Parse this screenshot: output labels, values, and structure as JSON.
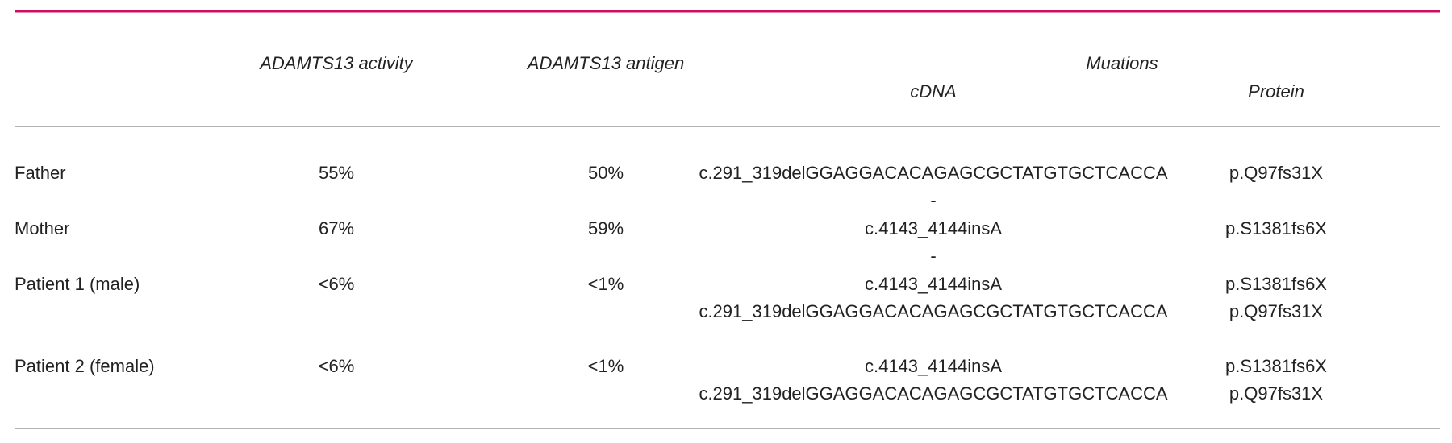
{
  "header": {
    "activity": "ADAMTS13 activity",
    "antigen": "ADAMTS13 antigen",
    "mutations": "Muations",
    "cdna": "cDNA",
    "protein": "Protein"
  },
  "rows": [
    {
      "label": "Father",
      "activity": "55%",
      "antigen": "50%",
      "cdna": [
        "c.291_319delGGAGGACACAGAGCGCTATGTGCTCACCA",
        "-"
      ],
      "protein": [
        "p.Q97fs31X"
      ]
    },
    {
      "label": "Mother",
      "activity": "67%",
      "antigen": "59%",
      "cdna": [
        "c.4143_4144insA",
        "-"
      ],
      "protein": [
        "p.S1381fs6X"
      ]
    },
    {
      "label": "Patient 1 (male)",
      "activity": "<6%",
      "antigen": "<1%",
      "cdna": [
        "c.4143_4144insA",
        "c.291_319delGGAGGACACAGAGCGCTATGTGCTCACCA"
      ],
      "protein": [
        "p.S1381fs6X",
        "p.Q97fs31X"
      ]
    },
    {
      "label": "Patient 2 (female)",
      "activity": "<6%",
      "antigen": "<1%",
      "cdna": [
        "c.4143_4144insA",
        "c.291_319delGGAGGACACAGAGCGCTATGTGCTCACCA"
      ],
      "protein": [
        "p.S1381fs6X",
        "p.Q97fs31X"
      ]
    }
  ]
}
